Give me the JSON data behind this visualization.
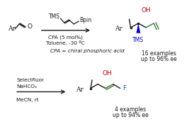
{
  "bg_color": "#ffffff",
  "figsize": [
    2.74,
    1.89
  ],
  "dpi": 100,
  "top_reaction": {
    "cond1": "CPA (5 mol%)",
    "cond2": "Toluene, -30 ºC",
    "cond3": "CPA = chiral phosphoric acid",
    "examples": "16 examples",
    "ee": "up to 96% ee"
  },
  "bottom_reaction": {
    "cond1": "Selectfluor",
    "cond2": "NaHCO₃",
    "cond3": "MeCN, rt",
    "examples": "4 examples",
    "ee": "up to 94% ee"
  },
  "colors": {
    "black": "#1a1a1a",
    "red": "#cc0000",
    "blue": "#0000cc",
    "green": "#2d7a2d",
    "fluor_blue": "#1155cc",
    "light_gray": "#aaaaaa"
  },
  "font_sizes": {
    "chem": 6.5,
    "chem_small": 5.5,
    "label": 6.0,
    "cond": 5.2,
    "italic_cond": 5.2
  }
}
